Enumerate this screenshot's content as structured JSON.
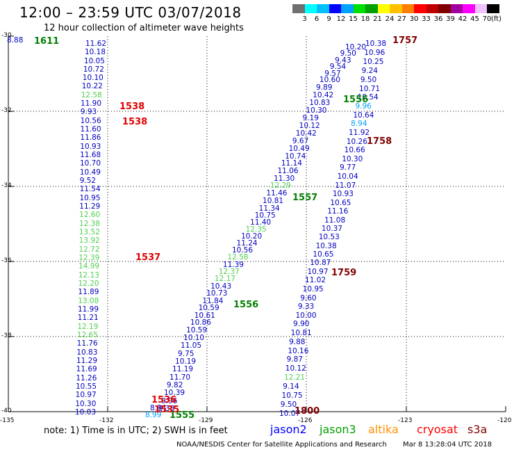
{
  "header": {
    "title": "12:00 – 23:59 UTC 03/07/2018",
    "subtitle": "12 hour collection of altimeter wave heights"
  },
  "legend": {
    "unit": "(ft)",
    "colors": [
      "#707070",
      "#00ffff",
      "#00c0ff",
      "#0000ff",
      "#00a0ff",
      "#00e000",
      "#00a000",
      "#ffff00",
      "#ffc000",
      "#ff8000",
      "#ff0000",
      "#c00000",
      "#800000",
      "#a000a0",
      "#ff00ff",
      "#f0c0ff",
      "#000000"
    ],
    "labels": [
      "3",
      "6",
      "9",
      "12",
      "15",
      "18",
      "21",
      "24",
      "27",
      "30",
      "33",
      "36",
      "39",
      "42",
      "45",
      "70"
    ]
  },
  "axes": {
    "lat_labels": [
      "-30",
      "-32",
      "-34",
      "-36",
      "-38",
      "-40"
    ],
    "lon_labels": [
      "-135",
      "-132",
      "-129",
      "-126",
      "-123",
      "-120"
    ]
  },
  "observation_tracks": [
    {
      "name": "track-a",
      "color": "#0000c0",
      "points": [
        {
          "v": "11.62"
        },
        {
          "v": "10.18"
        },
        {
          "v": "10.05"
        },
        {
          "v": "10.72"
        },
        {
          "v": "10.10"
        },
        {
          "v": "10.22"
        },
        {
          "v": "12.58",
          "c": "#50d050"
        },
        {
          "v": "11.90"
        },
        {
          "v": "9.93"
        },
        {
          "v": "10.56"
        },
        {
          "v": "11.60"
        },
        {
          "v": "11.86"
        },
        {
          "v": "10.93"
        },
        {
          "v": "11.68"
        },
        {
          "v": "10.70"
        },
        {
          "v": "10.49"
        },
        {
          "v": "9.52"
        },
        {
          "v": "11.54"
        },
        {
          "v": "10.95"
        },
        {
          "v": "11.29"
        },
        {
          "v": "12.60",
          "c": "#50d050"
        },
        {
          "v": "12.38",
          "c": "#50d050"
        },
        {
          "v": "13.52",
          "c": "#50d050"
        },
        {
          "v": "13.92",
          "c": "#50d050"
        },
        {
          "v": "12.72",
          "c": "#50d050"
        },
        {
          "v": "12.39",
          "c": "#50d050"
        },
        {
          "v": "14.99",
          "c": "#50d050"
        },
        {
          "v": "12.13",
          "c": "#50d050"
        },
        {
          "v": "12.20",
          "c": "#50d050"
        },
        {
          "v": "11.89"
        },
        {
          "v": "13.08",
          "c": "#50d050"
        },
        {
          "v": "11.99"
        },
        {
          "v": "11.21"
        },
        {
          "v": "12.19",
          "c": "#50d050"
        },
        {
          "v": "12.65",
          "c": "#50d050"
        },
        {
          "v": "11.76"
        },
        {
          "v": "10.83"
        },
        {
          "v": "11.29"
        },
        {
          "v": "11.69"
        },
        {
          "v": "11.26"
        },
        {
          "v": "10.55"
        },
        {
          "v": "10.97"
        },
        {
          "v": "10.30"
        },
        {
          "v": "10.03"
        }
      ]
    },
    {
      "name": "track-b",
      "color": "#0000c0",
      "points": [
        {
          "v": "9.33"
        },
        {
          "v": "9.96"
        },
        {
          "v": "10.39"
        },
        {
          "v": "9.82"
        },
        {
          "v": "11.70"
        },
        {
          "v": "11.19"
        },
        {
          "v": "10.19"
        },
        {
          "v": "9.75"
        },
        {
          "v": "11.05"
        },
        {
          "v": "10.10"
        },
        {
          "v": "10.59"
        },
        {
          "v": "10.86"
        },
        {
          "v": "10.61"
        },
        {
          "v": "10.59"
        },
        {
          "v": "11.84"
        },
        {
          "v": "10.73"
        },
        {
          "v": "10.43"
        },
        {
          "v": "12.17",
          "c": "#50d050"
        },
        {
          "v": "12.37",
          "c": "#50d050"
        },
        {
          "v": "11.39"
        },
        {
          "v": "12.58",
          "c": "#50d050"
        },
        {
          "v": "10.56"
        },
        {
          "v": "11.24"
        },
        {
          "v": "10.20"
        },
        {
          "v": "12.35",
          "c": "#50d050"
        },
        {
          "v": "11.40"
        },
        {
          "v": "10.75"
        },
        {
          "v": "11.34"
        },
        {
          "v": "10.81"
        },
        {
          "v": "11.46"
        },
        {
          "v": "12.29",
          "c": "#50d050"
        },
        {
          "v": "11.30"
        },
        {
          "v": "11.06"
        },
        {
          "v": "11.14"
        },
        {
          "v": "10.74"
        },
        {
          "v": "10.49"
        },
        {
          "v": "9.67"
        },
        {
          "v": "10.42"
        },
        {
          "v": "10.12"
        },
        {
          "v": "9.19"
        },
        {
          "v": "10.30"
        },
        {
          "v": "10.83"
        },
        {
          "v": "10.42"
        },
        {
          "v": "9.89"
        },
        {
          "v": "10.60"
        },
        {
          "v": "9.57"
        },
        {
          "v": "9.54"
        },
        {
          "v": "9.43"
        },
        {
          "v": "9.50"
        },
        {
          "v": "10.20"
        }
      ]
    },
    {
      "name": "track-c",
      "color": "#0000c0",
      "points": [
        {
          "v": "10.38"
        },
        {
          "v": "10.96"
        },
        {
          "v": "10.25"
        },
        {
          "v": "9.24"
        },
        {
          "v": "9.50"
        },
        {
          "v": "10.71"
        },
        {
          "v": "10.54"
        },
        {
          "v": "9.96",
          "c": "#00a0ff"
        },
        {
          "v": "10.64"
        },
        {
          "v": "8.94",
          "c": "#00a0ff"
        },
        {
          "v": "11.92"
        },
        {
          "v": "10.26"
        },
        {
          "v": "10.66"
        },
        {
          "v": "10.30"
        },
        {
          "v": "9.77"
        },
        {
          "v": "10.04"
        },
        {
          "v": "11.07"
        },
        {
          "v": "10.93"
        },
        {
          "v": "10.65"
        },
        {
          "v": "11.16"
        },
        {
          "v": "11.08"
        },
        {
          "v": "10.37"
        },
        {
          "v": "10.53"
        },
        {
          "v": "10.38"
        },
        {
          "v": "10.65"
        },
        {
          "v": "10.87"
        },
        {
          "v": "10.97"
        },
        {
          "v": "11.02"
        },
        {
          "v": "10.95"
        },
        {
          "v": "9.60"
        },
        {
          "v": "9.33"
        },
        {
          "v": "10.00"
        },
        {
          "v": "9.90"
        },
        {
          "v": "10.81"
        },
        {
          "v": "9.88"
        },
        {
          "v": "10.16"
        },
        {
          "v": "9.87"
        },
        {
          "v": "10.12"
        },
        {
          "v": "12.21",
          "c": "#50d050"
        },
        {
          "v": "9.14"
        },
        {
          "v": "10.75"
        },
        {
          "v": "9.50"
        },
        {
          "v": "10.07"
        }
      ]
    }
  ],
  "extra_observations": [
    {
      "v": "8.88",
      "c": "#0000c0"
    },
    {
      "v": "8.99",
      "c": "#00a0ff"
    },
    {
      "v": "8.94",
      "c": "#0000c0"
    }
  ],
  "pass_times": [
    {
      "t": "1611",
      "c": "#008000"
    },
    {
      "t": "1538",
      "c": "#e00000"
    },
    {
      "t": "1538",
      "c": "#e00000"
    },
    {
      "t": "1537",
      "c": "#e00000"
    },
    {
      "t": "1556",
      "c": "#008000"
    },
    {
      "t": "1557",
      "c": "#008000"
    },
    {
      "t": "1556",
      "c": "#008000"
    },
    {
      "t": "1555",
      "c": "#008000"
    },
    {
      "t": "1536",
      "c": "#e00000"
    },
    {
      "t": "1535",
      "c": "#e00000"
    },
    {
      "t": "1757",
      "c": "#800000"
    },
    {
      "t": "1758",
      "c": "#800000"
    },
    {
      "t": "1759",
      "c": "#800000"
    },
    {
      "t": "1800",
      "c": "#800000"
    }
  ],
  "footer": {
    "note": "note: 1) Time is in UTC; 2) SWH is in feet",
    "satellites": [
      {
        "name": "jason2",
        "color": "#0000ff"
      },
      {
        "name": "jason3",
        "color": "#00a000"
      },
      {
        "name": "altika",
        "color": "#ff9000"
      },
      {
        "name": "cryosat",
        "color": "#ff0000"
      },
      {
        "name": "s3a",
        "color": "#800000"
      }
    ],
    "credit": "NOAA/NESDIS Center for Satellite Applications and Research",
    "timestamp": "Mar  8 13:28:04 UTC 2018"
  }
}
